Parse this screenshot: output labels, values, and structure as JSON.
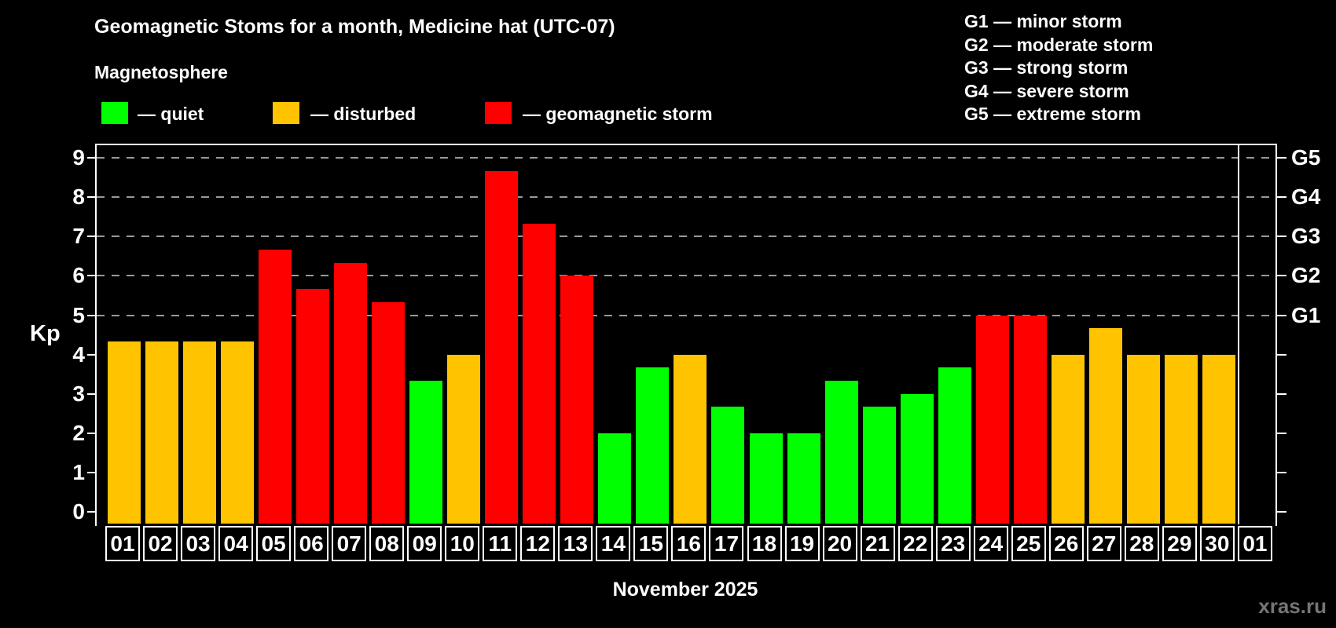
{
  "header": {
    "title": "Geomagnetic Stoms for a month, Medicine hat (UTC-07)",
    "subtitle": "Magnetosphere"
  },
  "legend": {
    "items": [
      {
        "key": "quiet",
        "label": "— quiet",
        "color": "#00ff00"
      },
      {
        "key": "disturbed",
        "label": "— disturbed",
        "color": "#ffc300"
      },
      {
        "key": "storm",
        "label": "— geomagnetic storm",
        "color": "#ff0000"
      }
    ]
  },
  "g_legend": {
    "lines": [
      "G1 — minor storm",
      "G2 — moderate storm",
      "G3 — strong storm",
      "G4 — severe storm",
      "G5 — extreme storm"
    ]
  },
  "chart_data": {
    "type": "bar",
    "title": "Geomagnetic Stoms for a month, Medicine hat (UTC-07)",
    "xlabel": "November 2025",
    "ylabel": "Kp",
    "ylim": [
      0,
      9
    ],
    "yticks": [
      0,
      1,
      2,
      3,
      4,
      5,
      6,
      7,
      8,
      9
    ],
    "gridline_levels": [
      5,
      6,
      7,
      8,
      9
    ],
    "grid": "dashed horizontal lines at storm levels only",
    "legend_position": "top",
    "right_axis_ticks": [
      {
        "label": "G5",
        "kp": 9
      },
      {
        "label": "G4",
        "kp": 8
      },
      {
        "label": "G3",
        "kp": 7
      },
      {
        "label": "G2",
        "kp": 6
      },
      {
        "label": "G1",
        "kp": 5
      }
    ],
    "month_separator_before_index": 30,
    "categories": [
      "01",
      "02",
      "03",
      "04",
      "05",
      "06",
      "07",
      "08",
      "09",
      "10",
      "11",
      "12",
      "13",
      "14",
      "15",
      "16",
      "17",
      "18",
      "19",
      "20",
      "21",
      "22",
      "23",
      "24",
      "25",
      "26",
      "27",
      "28",
      "29",
      "30",
      "01"
    ],
    "series": [
      {
        "name": "Kp index",
        "values": [
          4.33,
          4.33,
          4.33,
          4.33,
          6.67,
          5.67,
          6.33,
          5.33,
          3.33,
          4.0,
          8.67,
          7.33,
          6.0,
          2.0,
          3.67,
          4.0,
          2.67,
          2.0,
          2.0,
          3.33,
          2.67,
          3.0,
          3.67,
          5.0,
          5.0,
          4.0,
          4.67,
          4.0,
          4.0,
          4.0,
          null
        ]
      }
    ],
    "point_status": [
      "disturbed",
      "disturbed",
      "disturbed",
      "disturbed",
      "storm",
      "storm",
      "storm",
      "storm",
      "quiet",
      "disturbed",
      "storm",
      "storm",
      "storm",
      "quiet",
      "quiet",
      "disturbed",
      "quiet",
      "quiet",
      "quiet",
      "quiet",
      "quiet",
      "quiet",
      "quiet",
      "storm",
      "storm",
      "disturbed",
      "disturbed",
      "disturbed",
      "disturbed",
      "disturbed",
      null
    ],
    "status_colors": {
      "quiet": "#00ff00",
      "disturbed": "#ffc300",
      "storm": "#ff0000"
    }
  },
  "footer": {
    "month_label": "November 2025",
    "watermark": "xras.ru"
  }
}
